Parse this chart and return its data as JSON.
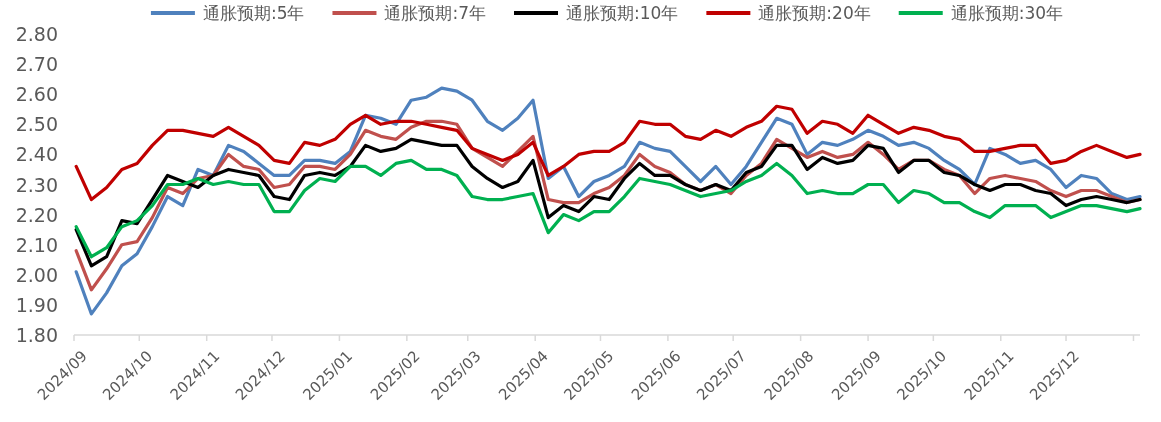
{
  "chart_data": {
    "type": "line",
    "legend": "top",
    "line_style": "solid",
    "marker": "none",
    "grid": false,
    "xlim": [
      "2024-09-01",
      "2026-01-04"
    ],
    "xticks": [
      {
        "value": "2024-09-01",
        "label": "2024/09"
      },
      {
        "value": "2024-10-01",
        "label": "2024/10"
      },
      {
        "value": "2024-11-01",
        "label": "2024/11"
      },
      {
        "value": "2024-12-01",
        "label": "2024/12"
      },
      {
        "value": "2025-01-01",
        "label": "2025/01"
      },
      {
        "value": "2025-02-01",
        "label": "2025/02"
      },
      {
        "value": "2025-03-01",
        "label": "2025/03"
      },
      {
        "value": "2025-04-01",
        "label": "2025/04"
      },
      {
        "value": "2025-05-01",
        "label": "2025/05"
      },
      {
        "value": "2025-06-01",
        "label": "2025/06"
      },
      {
        "value": "2025-07-01",
        "label": "2025/07"
      },
      {
        "value": "2025-08-01",
        "label": "2025/08"
      },
      {
        "value": "2025-09-01",
        "label": "2025/09"
      },
      {
        "value": "2025-10-01",
        "label": "2025/10"
      },
      {
        "value": "2025-11-01",
        "label": "2025/11"
      },
      {
        "value": "2025-12-01",
        "label": "2025/12"
      },
      {
        "value": "2026-01-01",
        "label": null
      }
    ],
    "ylim": [
      1.8,
      2.8
    ],
    "yticks": [
      {
        "value": 1.8,
        "label": "1.80"
      },
      {
        "value": 1.9,
        "label": "1.90"
      },
      {
        "value": 2.0,
        "label": "2.00"
      },
      {
        "value": 2.1,
        "label": "2.10"
      },
      {
        "value": 2.2,
        "label": "2.20"
      },
      {
        "value": 2.3,
        "label": "2.30"
      },
      {
        "value": 2.4,
        "label": "2.40"
      },
      {
        "value": 2.5,
        "label": "2.50"
      },
      {
        "value": 2.6,
        "label": "2.60"
      },
      {
        "value": 2.7,
        "label": "2.70"
      },
      {
        "value": 2.8,
        "label": "2.80"
      }
    ],
    "x": [
      "2024-09-02",
      "2024-09-09",
      "2024-09-16",
      "2024-09-23",
      "2024-09-30",
      "2024-10-07",
      "2024-10-14",
      "2024-10-21",
      "2024-10-28",
      "2024-11-04",
      "2024-11-11",
      "2024-11-18",
      "2024-11-25",
      "2024-12-02",
      "2024-12-09",
      "2024-12-16",
      "2024-12-23",
      "2024-12-30",
      "2025-01-06",
      "2025-01-13",
      "2025-01-20",
      "2025-01-27",
      "2025-02-03",
      "2025-02-10",
      "2025-02-17",
      "2025-02-24",
      "2025-03-03",
      "2025-03-10",
      "2025-03-17",
      "2025-03-24",
      "2025-03-31",
      "2025-04-07",
      "2025-04-14",
      "2025-04-21",
      "2025-04-28",
      "2025-05-05",
      "2025-05-12",
      "2025-05-19",
      "2025-05-26",
      "2025-06-02",
      "2025-06-09",
      "2025-06-16",
      "2025-06-23",
      "2025-06-30",
      "2025-07-07",
      "2025-07-14",
      "2025-07-21",
      "2025-07-28",
      "2025-08-04",
      "2025-08-11",
      "2025-08-18",
      "2025-08-25",
      "2025-09-01",
      "2025-09-08",
      "2025-09-15",
      "2025-09-22",
      "2025-09-29",
      "2025-10-06",
      "2025-10-13",
      "2025-10-20",
      "2025-10-27",
      "2025-11-03",
      "2025-11-10",
      "2025-11-17",
      "2025-11-24",
      "2025-12-01",
      "2025-12-08",
      "2025-12-15",
      "2025-12-22",
      "2025-12-29",
      "2026-01-04"
    ],
    "series": [
      {
        "name": "通胀预期:5年",
        "color": "#4f81bd",
        "values": [
          2.01,
          1.87,
          1.94,
          2.03,
          2.07,
          2.16,
          2.26,
          2.23,
          2.35,
          2.33,
          2.43,
          2.41,
          2.37,
          2.33,
          2.33,
          2.38,
          2.38,
          2.37,
          2.41,
          2.53,
          2.52,
          2.5,
          2.58,
          2.59,
          2.62,
          2.61,
          2.58,
          2.51,
          2.48,
          2.52,
          2.58,
          2.32,
          2.36,
          2.26,
          2.31,
          2.33,
          2.36,
          2.44,
          2.42,
          2.41,
          2.36,
          2.31,
          2.36,
          2.3,
          2.36,
          2.44,
          2.52,
          2.5,
          2.4,
          2.44,
          2.43,
          2.45,
          2.48,
          2.46,
          2.43,
          2.44,
          2.42,
          2.38,
          2.35,
          2.3,
          2.42,
          2.4,
          2.37,
          2.38,
          2.35,
          2.29,
          2.33,
          2.32,
          2.27,
          2.25,
          2.26
        ]
      },
      {
        "name": "通胀预期:7年",
        "color": "#c0504d",
        "values": [
          2.08,
          1.95,
          2.02,
          2.1,
          2.11,
          2.19,
          2.29,
          2.27,
          2.32,
          2.33,
          2.4,
          2.36,
          2.35,
          2.29,
          2.3,
          2.36,
          2.36,
          2.35,
          2.4,
          2.48,
          2.46,
          2.45,
          2.49,
          2.51,
          2.51,
          2.5,
          2.42,
          2.39,
          2.36,
          2.41,
          2.46,
          2.25,
          2.24,
          2.24,
          2.27,
          2.29,
          2.33,
          2.4,
          2.36,
          2.34,
          2.3,
          2.28,
          2.3,
          2.27,
          2.33,
          2.37,
          2.45,
          2.42,
          2.39,
          2.41,
          2.39,
          2.4,
          2.44,
          2.4,
          2.35,
          2.38,
          2.38,
          2.35,
          2.33,
          2.27,
          2.32,
          2.33,
          2.32,
          2.31,
          2.28,
          2.26,
          2.28,
          2.28,
          2.26,
          2.24,
          2.25
        ]
      },
      {
        "name": "通胀预期:10年",
        "color": "#000000",
        "values": [
          2.15,
          2.03,
          2.06,
          2.18,
          2.17,
          2.25,
          2.33,
          2.31,
          2.29,
          2.33,
          2.35,
          2.34,
          2.33,
          2.26,
          2.25,
          2.33,
          2.34,
          2.33,
          2.36,
          2.43,
          2.41,
          2.42,
          2.45,
          2.44,
          2.43,
          2.43,
          2.36,
          2.32,
          2.29,
          2.31,
          2.38,
          2.19,
          2.23,
          2.21,
          2.26,
          2.25,
          2.32,
          2.37,
          2.33,
          2.33,
          2.3,
          2.28,
          2.3,
          2.28,
          2.34,
          2.36,
          2.43,
          2.43,
          2.35,
          2.39,
          2.37,
          2.38,
          2.43,
          2.42,
          2.34,
          2.38,
          2.38,
          2.34,
          2.33,
          2.3,
          2.28,
          2.3,
          2.3,
          2.28,
          2.27,
          2.23,
          2.25,
          2.26,
          2.25,
          2.24,
          2.25
        ]
      },
      {
        "name": "通胀预期:20年",
        "color": "#c00000",
        "values": [
          2.36,
          2.25,
          2.29,
          2.35,
          2.37,
          2.43,
          2.48,
          2.48,
          2.47,
          2.46,
          2.49,
          2.46,
          2.43,
          2.38,
          2.37,
          2.44,
          2.43,
          2.45,
          2.5,
          2.53,
          2.5,
          2.51,
          2.51,
          2.5,
          2.49,
          2.48,
          2.42,
          2.4,
          2.38,
          2.4,
          2.44,
          2.33,
          2.36,
          2.4,
          2.41,
          2.41,
          2.44,
          2.51,
          2.5,
          2.5,
          2.46,
          2.45,
          2.48,
          2.46,
          2.49,
          2.51,
          2.56,
          2.55,
          2.47,
          2.51,
          2.5,
          2.47,
          2.53,
          2.5,
          2.47,
          2.49,
          2.48,
          2.46,
          2.45,
          2.41,
          2.41,
          2.42,
          2.43,
          2.43,
          2.37,
          2.38,
          2.41,
          2.43,
          2.41,
          2.39,
          2.4
        ]
      },
      {
        "name": "通胀预期:30年",
        "color": "#00b050",
        "values": [
          2.16,
          2.06,
          2.09,
          2.16,
          2.18,
          2.23,
          2.3,
          2.3,
          2.32,
          2.3,
          2.31,
          2.3,
          2.3,
          2.21,
          2.21,
          2.28,
          2.32,
          2.31,
          2.36,
          2.36,
          2.33,
          2.37,
          2.38,
          2.35,
          2.35,
          2.33,
          2.26,
          2.25,
          2.25,
          2.26,
          2.27,
          2.14,
          2.2,
          2.18,
          2.21,
          2.21,
          2.26,
          2.32,
          2.31,
          2.3,
          2.28,
          2.26,
          2.27,
          2.28,
          2.31,
          2.33,
          2.37,
          2.33,
          2.27,
          2.28,
          2.27,
          2.27,
          2.3,
          2.3,
          2.24,
          2.28,
          2.27,
          2.24,
          2.24,
          2.21,
          2.19,
          2.23,
          2.23,
          2.23,
          2.19,
          2.21,
          2.23,
          2.23,
          2.22,
          2.21,
          2.22
        ]
      }
    ]
  }
}
